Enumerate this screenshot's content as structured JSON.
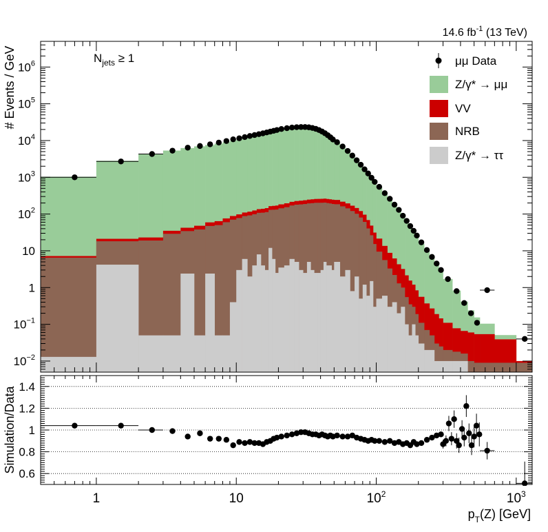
{
  "chart_data": [
    {
      "type": "area",
      "panel": "main",
      "subtitle": "14.6 fb⁻¹ (13 TeV)",
      "annotation": "Nⱼₑₜₛ ≥ 1",
      "annotation_parts": {
        "base": "N",
        "sub": "jets",
        "rest": " ≥ 1"
      },
      "lumi_parts": {
        "value": "14.6 fb",
        "sup": "-1",
        "rest": " (13 TeV)"
      },
      "ylabel": "# Events / GeV",
      "xlabel": "p_T(Z) [GeV]",
      "xlabel_parts": {
        "base": "p",
        "sub": "T",
        "rest": "(Z) [GeV]"
      },
      "xscale": "log",
      "yscale": "log",
      "xlim": [
        0.4,
        1300
      ],
      "ylim": [
        0.005,
        5000000
      ],
      "y_ticks": [
        {
          "value": 0.01,
          "base": "10",
          "exp": "−2"
        },
        {
          "value": 0.1,
          "base": "10",
          "exp": "−1"
        },
        {
          "value": 1,
          "base": "1",
          "exp": ""
        },
        {
          "value": 10,
          "base": "10",
          "exp": ""
        },
        {
          "value": 100,
          "base": "10",
          "exp": "2"
        },
        {
          "value": 1000,
          "base": "10",
          "exp": "3"
        },
        {
          "value": 10000,
          "base": "10",
          "exp": "4"
        },
        {
          "value": 100000,
          "base": "10",
          "exp": "5"
        },
        {
          "value": 1000000,
          "base": "10",
          "exp": "6"
        }
      ],
      "legend_position": "top-right",
      "legend": [
        {
          "label": "μμ Data",
          "kind": "marker",
          "color": "#000000"
        },
        {
          "label": "Z/γ* → μμ",
          "kind": "box",
          "color": "#99cc99"
        },
        {
          "label": "VV",
          "kind": "box",
          "color": "#cc0000"
        },
        {
          "label": "NRB",
          "kind": "box",
          "color": "#8c6654"
        },
        {
          "label": "Z/γ* → ττ",
          "kind": "box",
          "color": "#cccccc"
        }
      ],
      "bin_edges": [
        0.4,
        1,
        2,
        3,
        4,
        5,
        6,
        7,
        8,
        9,
        10,
        11,
        12,
        13,
        14,
        15,
        16,
        17,
        18,
        19,
        20,
        22,
        24,
        26,
        28,
        30,
        32,
        34,
        36,
        38,
        40,
        42,
        44,
        46,
        48,
        50,
        55,
        60,
        65,
        70,
        75,
        80,
        85,
        90,
        95,
        100,
        110,
        120,
        130,
        140,
        150,
        160,
        170,
        180,
        190,
        200,
        220,
        240,
        260,
        280,
        300,
        350,
        400,
        450,
        500,
        550,
        700,
        1000,
        1300
      ],
      "stack": [
        {
          "name": "Z/γ* → ττ",
          "color": "#cccccc",
          "values": [
            0.013,
            4.2,
            0.05,
            0.05,
            2.4,
            0.05,
            2.4,
            0.05,
            0.05,
            0.4,
            3,
            6,
            2,
            4,
            8,
            4,
            3,
            12,
            6,
            2.5,
            3.5,
            4,
            6,
            5,
            3,
            2.5,
            5,
            3,
            2.5,
            2.5,
            3,
            5,
            4,
            4,
            3,
            5,
            2,
            3,
            0.8,
            2,
            0.5,
            1.2,
            0.6,
            1.5,
            0.3,
            0.5,
            0.6,
            0.3,
            0.4,
            0.2,
            0.3,
            0.1,
            0.05,
            0.1,
            0.05,
            0.03,
            0.02,
            0.02,
            0.01,
            0.01,
            0.01,
            0.01,
            0.01,
            0.005,
            0.005,
            0.005,
            0.005,
            0.005
          ]
        },
        {
          "name": "NRB",
          "color": "#8c6654",
          "values": [
            6.5,
            14,
            19,
            29,
            32,
            38,
            45,
            50,
            60,
            70,
            75,
            82,
            90,
            95,
            100,
            105,
            110,
            118,
            125,
            130,
            140,
            150,
            165,
            175,
            180,
            185,
            190,
            195,
            200,
            200,
            200,
            200,
            195,
            190,
            185,
            180,
            160,
            140,
            120,
            100,
            80,
            60,
            40,
            25,
            15,
            9,
            5,
            3,
            1.8,
            1.1,
            0.7,
            0.45,
            0.3,
            0.2,
            0.14,
            0.08,
            0.05,
            0.03,
            0.02,
            0.015,
            0.01,
            0.008,
            0.006,
            0.005,
            0.004,
            0.004,
            0.004,
            0.004
          ]
        },
        {
          "name": "VV",
          "color": "#cc0000",
          "values": [
            0.7,
            3,
            4,
            6,
            8,
            10,
            12,
            14,
            16,
            18,
            20,
            22,
            24,
            26,
            28,
            30,
            32,
            34,
            36,
            38,
            40,
            42,
            44,
            46,
            48,
            50,
            52,
            54,
            55,
            56,
            57,
            58,
            58,
            58,
            58,
            57,
            55,
            52,
            48,
            44,
            40,
            35,
            28,
            22,
            16,
            12,
            8,
            5.5,
            4,
            3,
            2.2,
            1.6,
            1.2,
            0.9,
            0.65,
            0.45,
            0.3,
            0.22,
            0.16,
            0.12,
            0.09,
            0.06,
            0.05,
            0.05,
            0.045,
            0.045,
            0.03,
            0.001
          ]
        },
        {
          "name": "Z/γ* → μμ",
          "color": "#99cc99",
          "values": [
            1030,
            2800,
            4300,
            5300,
            6200,
            6900,
            7500,
            8200,
            9000,
            9700,
            10300,
            11000,
            11800,
            12500,
            13300,
            14100,
            14900,
            15900,
            16800,
            17800,
            19200,
            20600,
            21700,
            22500,
            22800,
            22700,
            22100,
            21100,
            19800,
            18300,
            16600,
            14900,
            13200,
            11600,
            10100,
            8400,
            6400,
            4800,
            3600,
            2700,
            2000,
            1500,
            1150,
            880,
            680,
            500,
            330,
            230,
            160,
            115,
            80,
            58,
            42,
            31,
            23,
            15,
            9.5,
            6.2,
            4.2,
            2.8,
            1.6,
            0.75,
            0.35,
            0.18,
            0.1,
            0.05,
            0.012
          ]
        }
      ],
      "data_points": [
        {
          "x": 0.7,
          "y": 1000,
          "xlo": 0.4,
          "xhi": 1
        },
        {
          "x": 1.5,
          "y": 2700,
          "xlo": 1,
          "xhi": 2
        },
        {
          "x": 2.5,
          "y": 4300,
          "xlo": 2,
          "xhi": 3
        },
        {
          "x": 3.5,
          "y": 5300
        },
        {
          "x": 4.5,
          "y": 6400
        },
        {
          "x": 5.5,
          "y": 7100
        },
        {
          "x": 6.5,
          "y": 7900
        },
        {
          "x": 7.5,
          "y": 8800
        },
        {
          "x": 8.5,
          "y": 9700
        },
        {
          "x": 9.5,
          "y": 10800
        },
        {
          "x": 10.5,
          "y": 11500
        },
        {
          "x": 11.5,
          "y": 12400
        },
        {
          "x": 12.5,
          "y": 13300
        },
        {
          "x": 13.5,
          "y": 14100
        },
        {
          "x": 14.5,
          "y": 14900
        },
        {
          "x": 15.5,
          "y": 15700
        },
        {
          "x": 16.5,
          "y": 16600
        },
        {
          "x": 17.5,
          "y": 17500
        },
        {
          "x": 18.5,
          "y": 18400
        },
        {
          "x": 19.5,
          "y": 19300
        },
        {
          "x": 21,
          "y": 20600
        },
        {
          "x": 23,
          "y": 21700
        },
        {
          "x": 25,
          "y": 22600
        },
        {
          "x": 27,
          "y": 23100
        },
        {
          "x": 29,
          "y": 23300
        },
        {
          "x": 31,
          "y": 23300
        },
        {
          "x": 33,
          "y": 22900
        },
        {
          "x": 35,
          "y": 22000
        },
        {
          "x": 37,
          "y": 20800
        },
        {
          "x": 39,
          "y": 19300
        },
        {
          "x": 41,
          "y": 17600
        },
        {
          "x": 43,
          "y": 15800
        },
        {
          "x": 45,
          "y": 14000
        },
        {
          "x": 47,
          "y": 12300
        },
        {
          "x": 49,
          "y": 10700
        },
        {
          "x": 52.5,
          "y": 9000
        },
        {
          "x": 57.5,
          "y": 6900
        },
        {
          "x": 62.5,
          "y": 5200
        },
        {
          "x": 67.5,
          "y": 3900
        },
        {
          "x": 72.5,
          "y": 2900
        },
        {
          "x": 77.5,
          "y": 2200
        },
        {
          "x": 82.5,
          "y": 1650
        },
        {
          "x": 87.5,
          "y": 1270
        },
        {
          "x": 92.5,
          "y": 970
        },
        {
          "x": 97.5,
          "y": 750
        },
        {
          "x": 105,
          "y": 550
        },
        {
          "x": 115,
          "y": 370
        },
        {
          "x": 125,
          "y": 260
        },
        {
          "x": 135,
          "y": 180
        },
        {
          "x": 145,
          "y": 130
        },
        {
          "x": 155,
          "y": 90
        },
        {
          "x": 165,
          "y": 65
        },
        {
          "x": 175,
          "y": 47
        },
        {
          "x": 185,
          "y": 35
        },
        {
          "x": 195,
          "y": 26
        },
        {
          "x": 210,
          "y": 17
        },
        {
          "x": 230,
          "y": 10.5
        },
        {
          "x": 250,
          "y": 6.8
        },
        {
          "x": 270,
          "y": 4.5
        },
        {
          "x": 290,
          "y": 3.0
        },
        {
          "x": 325,
          "y": 1.7
        },
        {
          "x": 375,
          "y": 0.8
        },
        {
          "x": 425,
          "y": 0.38
        },
        {
          "x": 475,
          "y": 0.2
        },
        {
          "x": 525,
          "y": 0.11
        },
        {
          "x": 620,
          "y": 0.85,
          "xlo": 550,
          "xhi": 700
        },
        {
          "x": 1150,
          "y": 0.04,
          "xlo": 1000,
          "xhi": 1300
        }
      ]
    },
    {
      "type": "scatter",
      "panel": "ratio",
      "ylabel": "Simulation/Data",
      "xlabel": "p_T(Z) [GeV]",
      "xscale": "log",
      "xlim": [
        0.4,
        1300
      ],
      "ylim": [
        0.5,
        1.5
      ],
      "x_ticks": [
        {
          "value": 1,
          "base": "1",
          "exp": ""
        },
        {
          "value": 10,
          "base": "10",
          "exp": ""
        },
        {
          "value": 100,
          "base": "10",
          "exp": "2"
        },
        {
          "value": 1000,
          "base": "10",
          "exp": "3"
        }
      ],
      "y_ticks": [
        {
          "value": 0.6,
          "label": "0.6"
        },
        {
          "value": 0.8,
          "label": "0.8"
        },
        {
          "value": 1.0,
          "label": "1"
        },
        {
          "value": 1.2,
          "label": "1.2"
        },
        {
          "value": 1.4,
          "label": "1.4"
        }
      ],
      "grid_y": [
        0.6,
        0.8,
        1.0,
        1.2,
        1.4
      ],
      "reference_line": 1.0,
      "points": [
        {
          "x": 0.7,
          "y": 1.04,
          "xlo": 0.4,
          "xhi": 1,
          "err": 0.02
        },
        {
          "x": 1.5,
          "y": 1.04,
          "xlo": 1,
          "xhi": 2,
          "err": 0.02
        },
        {
          "x": 2.5,
          "y": 1.0,
          "xlo": 2,
          "xhi": 3,
          "err": 0.015
        },
        {
          "x": 3.5,
          "y": 0.99
        },
        {
          "x": 4.5,
          "y": 0.94
        },
        {
          "x": 5.5,
          "y": 0.97
        },
        {
          "x": 6.5,
          "y": 0.92
        },
        {
          "x": 7.5,
          "y": 0.92
        },
        {
          "x": 8.5,
          "y": 0.91
        },
        {
          "x": 9.5,
          "y": 0.86
        },
        {
          "x": 10.5,
          "y": 0.89
        },
        {
          "x": 11.5,
          "y": 0.88
        },
        {
          "x": 12.5,
          "y": 0.89
        },
        {
          "x": 13.5,
          "y": 0.88
        },
        {
          "x": 14.5,
          "y": 0.88
        },
        {
          "x": 15.5,
          "y": 0.87
        },
        {
          "x": 16.5,
          "y": 0.89
        },
        {
          "x": 17.5,
          "y": 0.9
        },
        {
          "x": 18.5,
          "y": 0.92
        },
        {
          "x": 19.5,
          "y": 0.93
        },
        {
          "x": 21,
          "y": 0.94
        },
        {
          "x": 23,
          "y": 0.95
        },
        {
          "x": 25,
          "y": 0.96
        },
        {
          "x": 27,
          "y": 0.97
        },
        {
          "x": 29,
          "y": 0.98
        },
        {
          "x": 31,
          "y": 0.98
        },
        {
          "x": 33,
          "y": 0.97
        },
        {
          "x": 35,
          "y": 0.96
        },
        {
          "x": 37,
          "y": 0.96
        },
        {
          "x": 39,
          "y": 0.95
        },
        {
          "x": 41,
          "y": 0.96
        },
        {
          "x": 43,
          "y": 0.95
        },
        {
          "x": 45,
          "y": 0.94
        },
        {
          "x": 47,
          "y": 0.95
        },
        {
          "x": 49,
          "y": 0.94
        },
        {
          "x": 52.5,
          "y": 0.95
        },
        {
          "x": 57.5,
          "y": 0.94
        },
        {
          "x": 62.5,
          "y": 0.94
        },
        {
          "x": 67.5,
          "y": 0.95
        },
        {
          "x": 72.5,
          "y": 0.93
        },
        {
          "x": 77.5,
          "y": 0.92
        },
        {
          "x": 82.5,
          "y": 0.91
        },
        {
          "x": 87.5,
          "y": 0.9
        },
        {
          "x": 92.5,
          "y": 0.91
        },
        {
          "x": 97.5,
          "y": 0.9
        },
        {
          "x": 105,
          "y": 0.9
        },
        {
          "x": 115,
          "y": 0.89
        },
        {
          "x": 125,
          "y": 0.9
        },
        {
          "x": 135,
          "y": 0.88
        },
        {
          "x": 145,
          "y": 0.89
        },
        {
          "x": 155,
          "y": 0.87
        },
        {
          "x": 165,
          "y": 0.88
        },
        {
          "x": 175,
          "y": 0.86
        },
        {
          "x": 185,
          "y": 0.89
        },
        {
          "x": 195,
          "y": 0.87
        },
        {
          "x": 210,
          "y": 0.88
        },
        {
          "x": 230,
          "y": 0.91
        },
        {
          "x": 250,
          "y": 0.93
        },
        {
          "x": 270,
          "y": 0.95
        },
        {
          "x": 290,
          "y": 0.96
        },
        {
          "x": 300,
          "y": 0.87,
          "err": 0.04
        },
        {
          "x": 315,
          "y": 0.9,
          "err": 0.05
        },
        {
          "x": 330,
          "y": 1.06,
          "err": 0.07
        },
        {
          "x": 345,
          "y": 0.92,
          "err": 0.06
        },
        {
          "x": 360,
          "y": 1.1,
          "err": 0.08
        },
        {
          "x": 375,
          "y": 0.9,
          "err": 0.07
        },
        {
          "x": 390,
          "y": 0.86,
          "err": 0.07
        },
        {
          "x": 410,
          "y": 1.01,
          "err": 0.08
        },
        {
          "x": 425,
          "y": 0.93,
          "err": 0.08
        },
        {
          "x": 440,
          "y": 1.22,
          "err": 0.1
        },
        {
          "x": 460,
          "y": 0.97,
          "err": 0.09
        },
        {
          "x": 480,
          "y": 0.86,
          "err": 0.09
        },
        {
          "x": 500,
          "y": 0.94,
          "err": 0.1
        },
        {
          "x": 520,
          "y": 1.04,
          "err": 0.11
        },
        {
          "x": 545,
          "y": 0.96,
          "err": 0.11
        },
        {
          "x": 620,
          "y": 0.81,
          "xlo": 550,
          "xhi": 700,
          "err": 0.08
        },
        {
          "x": 1150,
          "y": 0.51,
          "xlo": 1000,
          "xhi": 1300,
          "err": 0.2
        }
      ]
    }
  ]
}
